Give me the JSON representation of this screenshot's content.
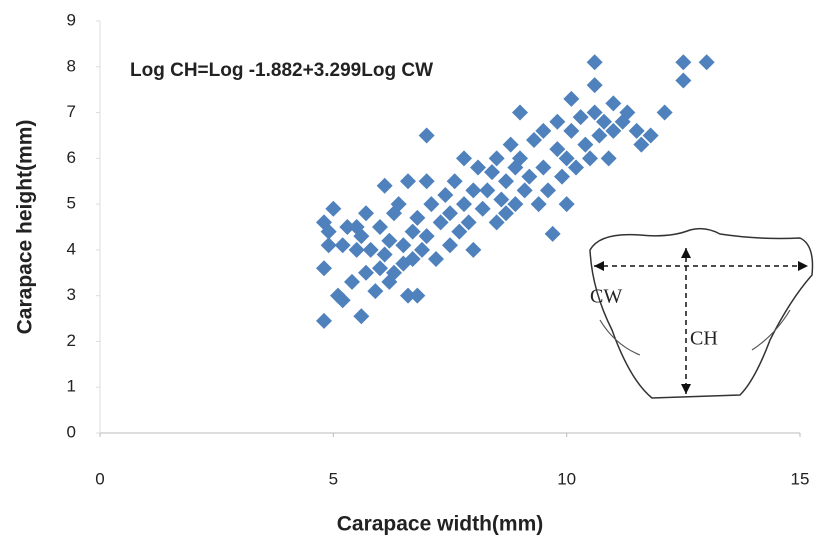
{
  "chart_data": {
    "type": "scatter",
    "xlabel": "Carapace width(mm)",
    "ylabel": "Carapace height(mm)",
    "annotation": "Log CH=Log -1.882+3.299Log CW",
    "inset_labels": [
      "CW",
      "CH"
    ],
    "color": "#4f81bd",
    "xlim": [
      0,
      15
    ],
    "xticks": [
      0,
      5,
      10,
      15
    ],
    "ylim": [
      0,
      9
    ],
    "yticks": [
      0,
      1,
      2,
      3,
      4,
      5,
      6,
      7,
      8,
      9
    ],
    "x": [
      4.8,
      4.8,
      4.8,
      4.9,
      5.0,
      4.9,
      5.1,
      5.2,
      5.2,
      5.3,
      5.4,
      5.5,
      5.5,
      5.6,
      5.7,
      5.6,
      5.7,
      5.8,
      5.9,
      6.0,
      6.0,
      6.1,
      6.1,
      6.2,
      6.2,
      6.3,
      6.3,
      6.4,
      6.5,
      6.5,
      6.6,
      6.6,
      6.7,
      6.7,
      6.8,
      6.8,
      6.9,
      7.0,
      7.0,
      7.0,
      7.1,
      7.2,
      7.3,
      7.4,
      7.5,
      7.5,
      7.6,
      7.7,
      7.8,
      7.8,
      7.9,
      8.0,
      8.0,
      8.1,
      8.2,
      8.3,
      8.4,
      8.5,
      8.5,
      8.6,
      8.7,
      8.7,
      8.8,
      8.9,
      8.9,
      9.0,
      9.0,
      9.1,
      9.2,
      9.3,
      9.4,
      9.5,
      9.5,
      9.6,
      9.7,
      9.8,
      9.8,
      9.9,
      10.0,
      10.0,
      10.1,
      10.1,
      10.2,
      10.3,
      10.4,
      10.5,
      10.6,
      10.6,
      10.6,
      10.7,
      10.8,
      10.9,
      11.0,
      11.0,
      11.2,
      11.3,
      11.5,
      11.6,
      11.8,
      12.1,
      12.5,
      12.5,
      13.0
    ],
    "values": [
      2.45,
      3.6,
      4.6,
      4.1,
      4.9,
      4.4,
      3.0,
      2.9,
      4.1,
      4.5,
      3.3,
      4.0,
      4.5,
      2.55,
      3.5,
      4.3,
      4.8,
      4.0,
      3.1,
      3.6,
      4.5,
      5.4,
      3.9,
      4.2,
      3.3,
      4.8,
      3.5,
      5.0,
      4.1,
      3.7,
      5.5,
      3.0,
      4.4,
      3.8,
      3.0,
      4.7,
      4.0,
      5.5,
      6.5,
      4.3,
      5.0,
      3.8,
      4.6,
      5.2,
      4.1,
      4.8,
      5.5,
      4.4,
      6.0,
      5.0,
      4.6,
      5.3,
      4.0,
      5.8,
      4.9,
      5.3,
      5.7,
      4.6,
      6.0,
      5.1,
      5.5,
      4.8,
      6.3,
      5.0,
      5.8,
      7.0,
      6.0,
      5.3,
      5.6,
      6.4,
      5.0,
      5.8,
      6.6,
      5.3,
      4.35,
      6.2,
      6.8,
      5.6,
      5.0,
      6.0,
      6.6,
      7.3,
      5.8,
      6.9,
      6.3,
      6.0,
      7.0,
      7.6,
      8.1,
      6.5,
      6.8,
      6.0,
      7.2,
      6.6,
      6.8,
      7.0,
      6.6,
      6.3,
      6.5,
      7.0,
      7.7,
      8.1,
      8.1
    ]
  }
}
